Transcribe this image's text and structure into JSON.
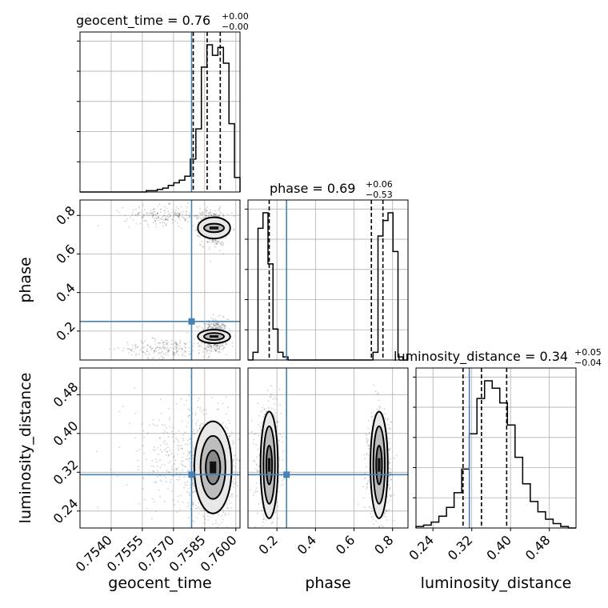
{
  "chart_data": {
    "type": "corner",
    "parameters": [
      "geocent_time",
      "phase",
      "luminosity_distance"
    ],
    "truth": {
      "geocent_time": 0.75787,
      "phase": 0.25,
      "luminosity_distance": 0.315
    },
    "truth_color": "#4682b4",
    "titles": [
      {
        "name": "geocent_time",
        "median": "0.76",
        "plus": "+0.00",
        "minus": "−0.00"
      },
      {
        "name": "phase",
        "median": "0.69",
        "plus": "+0.06",
        "minus": "−0.53"
      },
      {
        "name": "luminosity_distance",
        "median": "0.34",
        "plus": "+0.05",
        "minus": "−0.04"
      }
    ],
    "ranges": {
      "geocent_time": [
        0.7525,
        0.7602
      ],
      "phase": [
        0.05,
        0.88
      ],
      "luminosity_distance": [
        0.205,
        0.535
      ]
    },
    "ticks": {
      "geocent_time": [
        "0.7540",
        "0.7555",
        "0.7570",
        "0.7585",
        "0.7600"
      ],
      "phase": [
        "0.2",
        "0.4",
        "0.6",
        "0.8"
      ],
      "luminosity_distance": [
        "0.24",
        "0.32",
        "0.40",
        "0.48"
      ]
    },
    "quantiles": {
      "geocent_time": [
        0.75795,
        0.75862,
        0.75925
      ],
      "phase": [
        0.16,
        0.69,
        0.75
      ],
      "luminosity_distance": [
        0.302,
        0.34,
        0.392
      ]
    },
    "hist": {
      "geocent_time": {
        "range": [
          0.7525,
          0.7602
        ],
        "counts": [
          0,
          0,
          0,
          0,
          0,
          0,
          0,
          0,
          0,
          0,
          0,
          0,
          1,
          1,
          2,
          3,
          5,
          7,
          9,
          12,
          25,
          48,
          95,
          112,
          104,
          110,
          98,
          52,
          11
        ]
      },
      "phase": {
        "range": [
          0.05,
          0.88
        ],
        "counts": [
          0,
          5,
          85,
          95,
          62,
          20,
          5,
          2,
          0,
          0,
          0,
          0,
          0,
          0,
          0,
          0,
          0,
          0,
          0,
          0,
          0,
          0,
          0,
          0,
          0,
          5,
          80,
          90,
          95,
          70,
          2,
          0
        ]
      },
      "luminosity_distance": {
        "range": [
          0.205,
          0.535
        ],
        "counts": [
          1,
          2,
          4,
          8,
          14,
          24,
          40,
          64,
          88,
          100,
          95,
          85,
          70,
          48,
          30,
          18,
          11,
          6,
          3,
          1,
          0
        ]
      }
    },
    "grid": true
  }
}
